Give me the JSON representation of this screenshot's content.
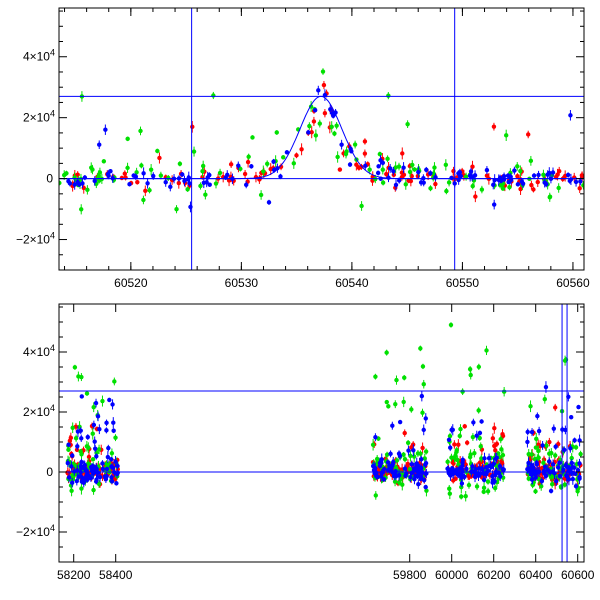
{
  "colors": {
    "red": "#ff0000",
    "green": "#00e000",
    "blue": "#0000ff",
    "frame": "#000000"
  },
  "chart_data": [
    {
      "type": "scatter",
      "xlim": [
        60513.5,
        60561
      ],
      "ylim": [
        -30000,
        56000
      ],
      "xticks": [
        60520,
        60530,
        60540,
        60550,
        60560
      ],
      "xtick_labels": [
        "60520",
        "60530",
        "60540",
        "60550",
        "60560"
      ],
      "yticks": [
        -20000,
        0,
        20000,
        40000
      ],
      "ytick_labels": [
        {
          "base": "−2×10",
          "exp": "4"
        },
        {
          "base": "0",
          "exp": ""
        },
        {
          "base": "2×10",
          "exp": "4"
        },
        {
          "base": "4×10",
          "exp": "4"
        }
      ],
      "hlines": [
        0,
        27000
      ],
      "vlines": [
        60525.5,
        60549.3
      ],
      "model_curve": {
        "t0": 60537.2,
        "peak": 27000,
        "width": 2.3
      },
      "series": [
        {
          "color": "red",
          "seed": 11,
          "n": 120,
          "spread": 1600,
          "outlier_frac": 0.05
        },
        {
          "color": "green",
          "seed": 23,
          "n": 120,
          "spread": 2800,
          "outlier_frac": 0.1
        },
        {
          "color": "blue",
          "seed": 37,
          "n": 120,
          "spread": 1500,
          "outlier_frac": 0.05
        }
      ]
    },
    {
      "type": "scatter",
      "xlim": [
        58130,
        60630
      ],
      "ylim": [
        -30000,
        56000
      ],
      "xticks": [
        58200,
        58400,
        59800,
        60000,
        60200,
        60400,
        60600
      ],
      "xtick_labels": [
        "58200",
        "58400",
        "59800",
        "60000",
        "60200",
        "60400",
        "60600"
      ],
      "yticks": [
        -20000,
        0,
        20000,
        40000
      ],
      "ytick_labels": [
        {
          "base": "−2×10",
          "exp": "4"
        },
        {
          "base": "0",
          "exp": ""
        },
        {
          "base": "2×10",
          "exp": "4"
        },
        {
          "base": "4×10",
          "exp": "4"
        }
      ],
      "hlines": [
        0,
        27000
      ],
      "vlines": [
        60525.5,
        60549.3
      ],
      "seasons": [
        [
          58170,
          58410
        ],
        [
          59620,
          59880
        ],
        [
          59980,
          60250
        ],
        [
          60360,
          60615
        ]
      ],
      "series": [
        {
          "color": "red",
          "seed": 51,
          "n": 300,
          "spread": 4000
        },
        {
          "color": "green",
          "seed": 67,
          "n": 260,
          "spread": 9000
        },
        {
          "color": "blue",
          "seed": 79,
          "n": 320,
          "spread": 5000
        }
      ]
    }
  ]
}
